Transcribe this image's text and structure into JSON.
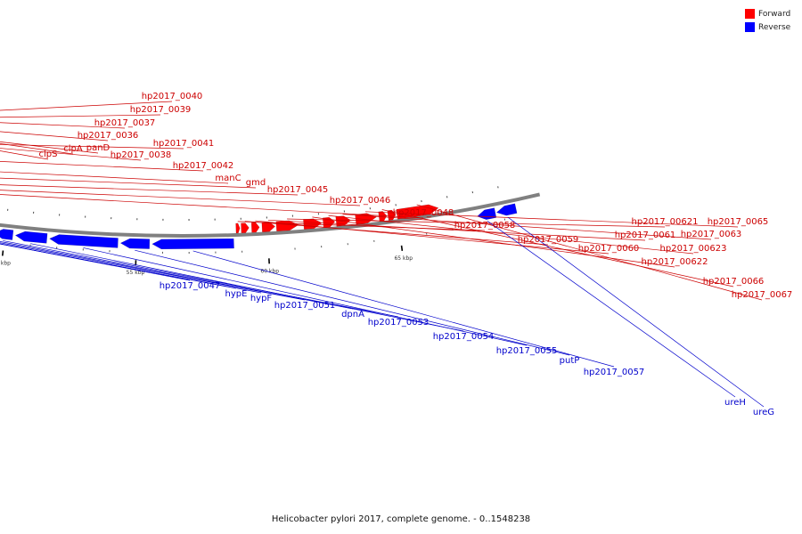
{
  "caption": "Helicobacter pylori 2017, complete genome. - 0..1548238",
  "legend": [
    {
      "label": "Forward",
      "color": "#ff0000"
    },
    {
      "label": "Reverse",
      "color": "#0000ff"
    }
  ],
  "colors": {
    "forward": "#ff0000",
    "reverse": "#0000ff",
    "backbone": "#808080"
  },
  "scale": {
    "range_kbp": [
      27.5,
      69.5
    ],
    "unit": "kbp",
    "major_step_kbp": 5,
    "minor_step_kbp": 1
  },
  "scale_labels": [
    "30 kbp",
    "35 kbp",
    "40 kbp",
    "45 kbp",
    "50 kbp",
    "55 kbp",
    "60 kbp",
    "65 kbp"
  ],
  "genes": [
    {
      "name": "",
      "strand": "-",
      "start": 27.5,
      "end": 28.6
    },
    {
      "name": "",
      "strand": "+",
      "start": 28.7,
      "end": 29.2
    },
    {
      "name": "clpS",
      "strand": "+",
      "start": 29.3,
      "end": 29.6
    },
    {
      "name": "clpA",
      "strand": "+",
      "start": 29.65,
      "end": 31.9
    },
    {
      "name": "panD",
      "strand": "+",
      "start": 31.95,
      "end": 32.3
    },
    {
      "name": "hp2017_0036",
      "strand": "+",
      "start": 32.35,
      "end": 32.7
    },
    {
      "name": "hp2017_0037",
      "strand": "+",
      "start": 32.8,
      "end": 33.9
    },
    {
      "name": "hp2017_0038",
      "strand": "+",
      "start": 34.0,
      "end": 35.1
    },
    {
      "name": "hp2017_0039",
      "strand": "+",
      "start": 35.15,
      "end": 35.45
    },
    {
      "name": "hp2017_0040",
      "strand": "+",
      "start": 35.5,
      "end": 36.3
    },
    {
      "name": "hp2017_0041",
      "strand": "+",
      "start": 36.4,
      "end": 37.5
    },
    {
      "name": "hp2017_0042",
      "strand": "+",
      "start": 37.6,
      "end": 38.8
    },
    {
      "name": "manC",
      "strand": "+",
      "start": 38.9,
      "end": 40.4
    },
    {
      "name": "gmd",
      "strand": "+",
      "start": 40.5,
      "end": 41.9
    },
    {
      "name": "hp2017_0045",
      "strand": "+",
      "start": 42.0,
      "end": 43.1
    },
    {
      "name": "hp2017_0046",
      "strand": "+",
      "start": 43.2,
      "end": 43.4
    },
    {
      "name": "hp2017_0048",
      "strand": "+",
      "start": 43.7,
      "end": 43.95
    },
    {
      "name": "hp2017_0047",
      "strand": "-",
      "start": 43.4,
      "end": 43.65
    },
    {
      "name": "hypE",
      "strand": "-",
      "start": 43.7,
      "end": 44.8
    },
    {
      "name": "hypF",
      "strand": "-",
      "start": 44.85,
      "end": 47.6
    },
    {
      "name": "hp2017_0051",
      "strand": "-",
      "start": 47.7,
      "end": 48.7
    },
    {
      "name": "dpnA",
      "strand": "-",
      "start": 48.8,
      "end": 49.5
    },
    {
      "name": "hp2017_0053",
      "strand": "-",
      "start": 49.6,
      "end": 50.3
    },
    {
      "name": "hp2017_0054",
      "strand": "-",
      "start": 50.4,
      "end": 51.6
    },
    {
      "name": "hp2017_0055",
      "strand": "-",
      "start": 51.7,
      "end": 54.3
    },
    {
      "name": "putP",
      "strand": "-",
      "start": 54.4,
      "end": 55.5
    },
    {
      "name": "hp2017_0057",
      "strand": "-",
      "start": 55.6,
      "end": 58.7
    },
    {
      "name": "hp2017_0058",
      "strand": "+",
      "start": 58.8,
      "end": 58.95
    },
    {
      "name": "hp2017_0059",
      "strand": "+",
      "start": 59.0,
      "end": 59.3
    },
    {
      "name": "hp2017_0060",
      "strand": "+",
      "start": 59.4,
      "end": 59.7
    },
    {
      "name": "hp2017_0061",
      "strand": "+",
      "start": 59.8,
      "end": 60.3
    },
    {
      "name": "hp2017_00621",
      "strand": "+",
      "start": 60.35,
      "end": 61.2
    },
    {
      "name": "hp2017_00622",
      "strand": "+",
      "start": 61.4,
      "end": 62.1
    },
    {
      "name": "hp2017_00623",
      "strand": "+",
      "start": 62.15,
      "end": 62.6
    },
    {
      "name": "hp2017_0063",
      "strand": "+",
      "start": 62.65,
      "end": 63.2
    },
    {
      "name": "hp2017_0065",
      "strand": "+",
      "start": 63.4,
      "end": 64.2
    },
    {
      "name": "hp2017_0066",
      "strand": "+",
      "start": 64.3,
      "end": 64.6
    },
    {
      "name": "",
      "strand": "+",
      "start": 64.65,
      "end": 64.95
    },
    {
      "name": "hp2017_0067",
      "strand": "+",
      "start": 65.0,
      "end": 66.6
    },
    {
      "name": "ureH",
      "strand": "-",
      "start": 68.0,
      "end": 68.7
    },
    {
      "name": "ureG",
      "strand": "-",
      "start": 68.75,
      "end": 69.5
    }
  ]
}
